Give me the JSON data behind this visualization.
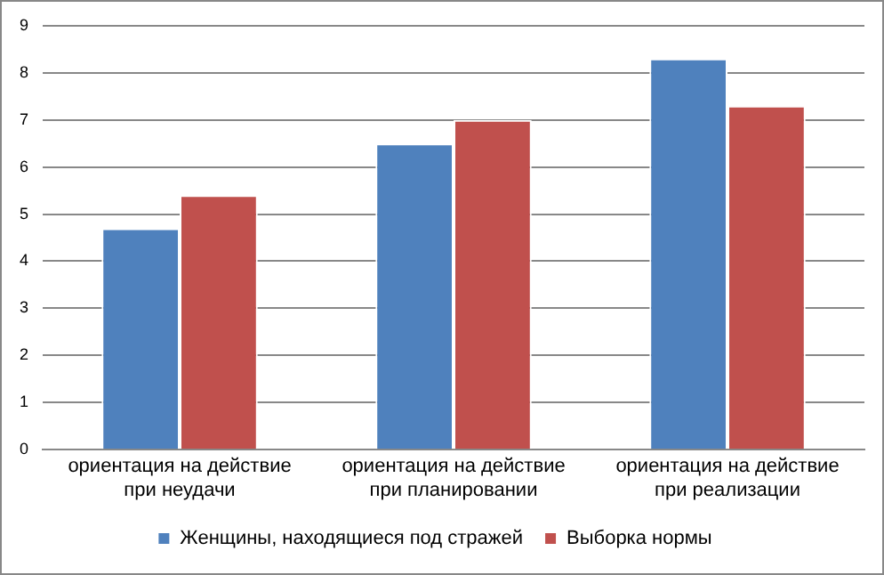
{
  "chart_data": {
    "type": "bar",
    "categories": [
      "ориентация на действие при неудачи",
      "ориентация на действие при планировании",
      "ориентация на действие при реализации"
    ],
    "series": [
      {
        "name": "Женщины, находящиеся под стражей",
        "color": "#4f81bd",
        "values": [
          4.7,
          6.5,
          8.3
        ]
      },
      {
        "name": "Выборка нормы",
        "color": "#c0504d",
        "values": [
          5.4,
          7.0,
          7.3
        ]
      }
    ],
    "ylim": [
      0,
      9
    ],
    "yticks": [
      0,
      1,
      2,
      3,
      4,
      5,
      6,
      7,
      8,
      9
    ],
    "grid": "y",
    "legend": "bottom"
  }
}
